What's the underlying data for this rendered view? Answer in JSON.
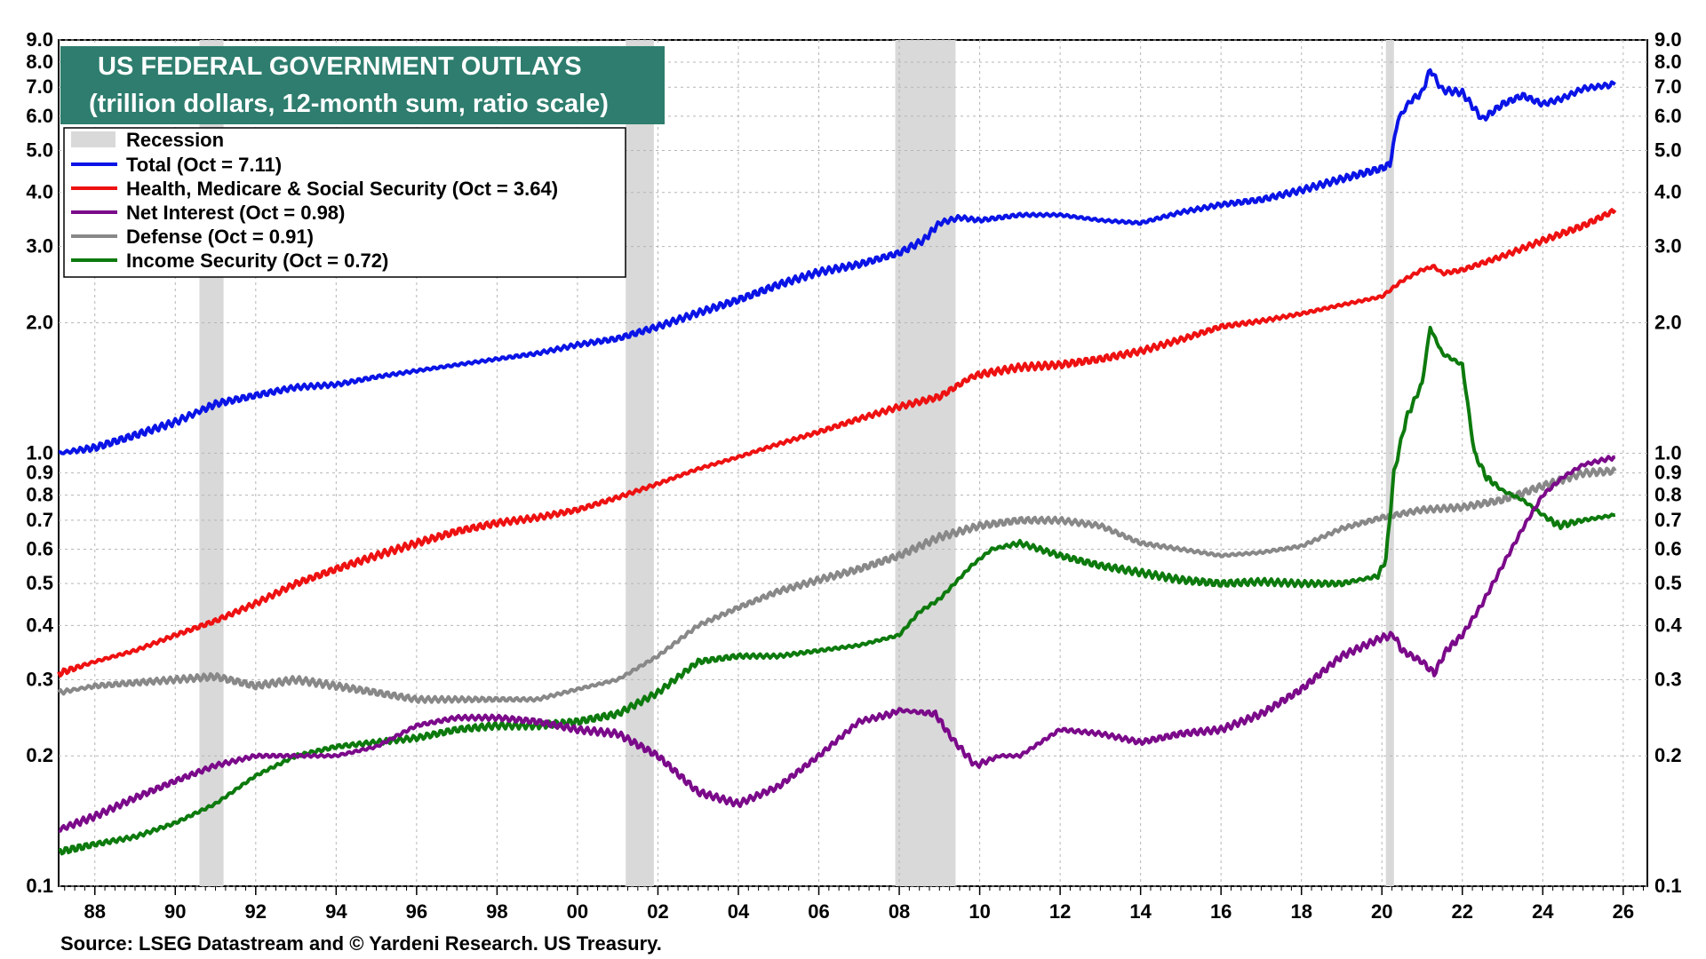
{
  "chart_data": {
    "type": "line",
    "title": "US FEDERAL GOVERNMENT OUTLAYS",
    "subtitle": "(trillion dollars, 12-month sum, ratio scale)",
    "source": "Source: LSEG Datastream and © Yardeni Research. US Treasury.",
    "y_scale": "log",
    "ylim": [
      0.1,
      9.0
    ],
    "xlim": [
      1987.1,
      2026.6
    ],
    "y_ticks": [
      "9.0",
      "8.0",
      "7.0",
      "6.0",
      "5.0",
      "4.0",
      "3.0",
      "2.0",
      "1.0",
      "0.9",
      "0.8",
      "0.7",
      "0.6",
      "0.5",
      "0.4",
      "0.3",
      "0.2",
      "0.1"
    ],
    "x_ticks": [
      "88",
      "90",
      "92",
      "94",
      "96",
      "98",
      "00",
      "02",
      "04",
      "06",
      "08",
      "10",
      "12",
      "14",
      "16",
      "18",
      "20",
      "22",
      "24",
      "26"
    ],
    "grid": true,
    "legend_position": "top-left",
    "recession_label": "Recession",
    "recessions": [
      [
        1990.6,
        1991.2
      ],
      [
        2001.2,
        2001.9
      ],
      [
        2007.9,
        2009.4
      ],
      [
        2020.1,
        2020.3
      ]
    ],
    "series": [
      {
        "name": "Total",
        "legend": "Total  (Oct = 7.11)",
        "color": "#0a14e6",
        "points": [
          [
            1987.1,
            1.0
          ],
          [
            1988,
            1.03
          ],
          [
            1989,
            1.1
          ],
          [
            1990,
            1.18
          ],
          [
            1990.6,
            1.25
          ],
          [
            1991,
            1.3
          ],
          [
            1992,
            1.36
          ],
          [
            1993,
            1.42
          ],
          [
            1994,
            1.44
          ],
          [
            1995,
            1.5
          ],
          [
            1996,
            1.55
          ],
          [
            1997,
            1.6
          ],
          [
            1998,
            1.65
          ],
          [
            1999,
            1.7
          ],
          [
            2000,
            1.78
          ],
          [
            2001,
            1.84
          ],
          [
            2002,
            1.96
          ],
          [
            2003,
            2.11
          ],
          [
            2004,
            2.26
          ],
          [
            2005,
            2.45
          ],
          [
            2006,
            2.62
          ],
          [
            2007,
            2.73
          ],
          [
            2008,
            2.9
          ],
          [
            2008.6,
            3.1
          ],
          [
            2009,
            3.4
          ],
          [
            2009.5,
            3.5
          ],
          [
            2010,
            3.45
          ],
          [
            2011,
            3.55
          ],
          [
            2012,
            3.55
          ],
          [
            2013,
            3.45
          ],
          [
            2014,
            3.4
          ],
          [
            2015,
            3.6
          ],
          [
            2016,
            3.75
          ],
          [
            2017,
            3.85
          ],
          [
            2018,
            4.05
          ],
          [
            2019,
            4.3
          ],
          [
            2020,
            4.55
          ],
          [
            2020.2,
            4.65
          ],
          [
            2020.4,
            5.9
          ],
          [
            2020.7,
            6.5
          ],
          [
            2021,
            6.8
          ],
          [
            2021.2,
            7.7
          ],
          [
            2021.5,
            6.9
          ],
          [
            2022,
            6.8
          ],
          [
            2022.5,
            5.9
          ],
          [
            2023,
            6.4
          ],
          [
            2023.5,
            6.7
          ],
          [
            2024,
            6.4
          ],
          [
            2024.5,
            6.6
          ],
          [
            2025,
            6.95
          ],
          [
            2025.5,
            7.05
          ],
          [
            2025.8,
            7.11
          ]
        ]
      },
      {
        "name": "Health, Medicare & Social Security",
        "legend": "Health, Medicare & Social Security  (Oct = 3.64)",
        "color": "#ee1111",
        "points": [
          [
            1987.1,
            0.31
          ],
          [
            1988,
            0.33
          ],
          [
            1989,
            0.35
          ],
          [
            1990,
            0.38
          ],
          [
            1991,
            0.41
          ],
          [
            1992,
            0.45
          ],
          [
            1993,
            0.5
          ],
          [
            1994,
            0.54
          ],
          [
            1995,
            0.58
          ],
          [
            1996,
            0.62
          ],
          [
            1997,
            0.66
          ],
          [
            1998,
            0.69
          ],
          [
            1999,
            0.71
          ],
          [
            2000,
            0.74
          ],
          [
            2001,
            0.79
          ],
          [
            2002,
            0.85
          ],
          [
            2003,
            0.92
          ],
          [
            2004,
            0.98
          ],
          [
            2005,
            1.05
          ],
          [
            2006,
            1.12
          ],
          [
            2007,
            1.2
          ],
          [
            2008,
            1.28
          ],
          [
            2009,
            1.35
          ],
          [
            2009.8,
            1.5
          ],
          [
            2010,
            1.52
          ],
          [
            2011,
            1.58
          ],
          [
            2012,
            1.6
          ],
          [
            2013,
            1.65
          ],
          [
            2014,
            1.72
          ],
          [
            2015,
            1.83
          ],
          [
            2016,
            1.96
          ],
          [
            2017,
            2.02
          ],
          [
            2018,
            2.1
          ],
          [
            2019,
            2.2
          ],
          [
            2020,
            2.3
          ],
          [
            2020.5,
            2.5
          ],
          [
            2021,
            2.65
          ],
          [
            2021.3,
            2.7
          ],
          [
            2021.5,
            2.6
          ],
          [
            2022,
            2.65
          ],
          [
            2023,
            2.85
          ],
          [
            2024,
            3.1
          ],
          [
            2025,
            3.35
          ],
          [
            2025.8,
            3.64
          ]
        ]
      },
      {
        "name": "Net Interest",
        "legend": "Net Interest (Oct = 0.98)",
        "color": "#7b0a8a",
        "points": [
          [
            1987.1,
            0.135
          ],
          [
            1988,
            0.145
          ],
          [
            1989,
            0.16
          ],
          [
            1990,
            0.175
          ],
          [
            1991,
            0.19
          ],
          [
            1992,
            0.2
          ],
          [
            1993,
            0.2
          ],
          [
            1994,
            0.2
          ],
          [
            1995,
            0.21
          ],
          [
            1996,
            0.235
          ],
          [
            1997,
            0.245
          ],
          [
            1998,
            0.245
          ],
          [
            1999,
            0.24
          ],
          [
            2000,
            0.23
          ],
          [
            2001,
            0.225
          ],
          [
            2002,
            0.2
          ],
          [
            2003,
            0.165
          ],
          [
            2004,
            0.155
          ],
          [
            2005,
            0.17
          ],
          [
            2006,
            0.2
          ],
          [
            2007,
            0.24
          ],
          [
            2007.8,
            0.25
          ],
          [
            2008,
            0.255
          ],
          [
            2008.9,
            0.25
          ],
          [
            2009.3,
            0.22
          ],
          [
            2009.9,
            0.19
          ],
          [
            2010.5,
            0.2
          ],
          [
            2011,
            0.2
          ],
          [
            2012,
            0.23
          ],
          [
            2013,
            0.225
          ],
          [
            2014,
            0.215
          ],
          [
            2015,
            0.225
          ],
          [
            2016,
            0.23
          ],
          [
            2017,
            0.25
          ],
          [
            2018,
            0.285
          ],
          [
            2019,
            0.34
          ],
          [
            2020,
            0.375
          ],
          [
            2020.3,
            0.38
          ],
          [
            2020.5,
            0.35
          ],
          [
            2021,
            0.33
          ],
          [
            2021.3,
            0.31
          ],
          [
            2021.6,
            0.35
          ],
          [
            2022,
            0.38
          ],
          [
            2022.5,
            0.45
          ],
          [
            2023,
            0.55
          ],
          [
            2023.5,
            0.67
          ],
          [
            2024,
            0.8
          ],
          [
            2024.5,
            0.88
          ],
          [
            2025,
            0.94
          ],
          [
            2025.8,
            0.98
          ]
        ]
      },
      {
        "name": "Defense",
        "legend": "Defense (Oct = 0.91)",
        "color": "#888888",
        "points": [
          [
            1987.1,
            0.28
          ],
          [
            1988,
            0.29
          ],
          [
            1989,
            0.295
          ],
          [
            1990,
            0.3
          ],
          [
            1991,
            0.305
          ],
          [
            1992,
            0.29
          ],
          [
            1993,
            0.3
          ],
          [
            1994,
            0.29
          ],
          [
            1995,
            0.28
          ],
          [
            1996,
            0.27
          ],
          [
            1997,
            0.27
          ],
          [
            1998,
            0.27
          ],
          [
            1999,
            0.27
          ],
          [
            2000,
            0.285
          ],
          [
            2001,
            0.3
          ],
          [
            2002,
            0.34
          ],
          [
            2003,
            0.4
          ],
          [
            2004,
            0.44
          ],
          [
            2005,
            0.48
          ],
          [
            2006,
            0.51
          ],
          [
            2007,
            0.54
          ],
          [
            2008,
            0.58
          ],
          [
            2009,
            0.64
          ],
          [
            2010,
            0.68
          ],
          [
            2011,
            0.7
          ],
          [
            2012,
            0.7
          ],
          [
            2013,
            0.68
          ],
          [
            2014,
            0.62
          ],
          [
            2015,
            0.6
          ],
          [
            2016,
            0.58
          ],
          [
            2017,
            0.59
          ],
          [
            2018,
            0.61
          ],
          [
            2019,
            0.67
          ],
          [
            2020,
            0.71
          ],
          [
            2021,
            0.74
          ],
          [
            2022,
            0.75
          ],
          [
            2023,
            0.78
          ],
          [
            2024,
            0.84
          ],
          [
            2025,
            0.9
          ],
          [
            2025.8,
            0.91
          ]
        ]
      },
      {
        "name": "Income Security",
        "legend": "Income Security (Oct = 0.72)",
        "color": "#0d7a0d",
        "points": [
          [
            1987.1,
            0.12
          ],
          [
            1988,
            0.125
          ],
          [
            1989,
            0.13
          ],
          [
            1990,
            0.14
          ],
          [
            1991,
            0.155
          ],
          [
            1992,
            0.18
          ],
          [
            1993,
            0.2
          ],
          [
            1994,
            0.21
          ],
          [
            1995,
            0.215
          ],
          [
            1996,
            0.22
          ],
          [
            1997,
            0.23
          ],
          [
            1998,
            0.235
          ],
          [
            1999,
            0.235
          ],
          [
            2000,
            0.24
          ],
          [
            2001,
            0.25
          ],
          [
            2002,
            0.28
          ],
          [
            2003,
            0.33
          ],
          [
            2004,
            0.34
          ],
          [
            2005,
            0.34
          ],
          [
            2006,
            0.35
          ],
          [
            2007,
            0.36
          ],
          [
            2008,
            0.38
          ],
          [
            2008.5,
            0.43
          ],
          [
            2009,
            0.46
          ],
          [
            2009.8,
            0.55
          ],
          [
            2010.3,
            0.6
          ],
          [
            2011,
            0.62
          ],
          [
            2012,
            0.58
          ],
          [
            2013,
            0.55
          ],
          [
            2014,
            0.53
          ],
          [
            2015,
            0.51
          ],
          [
            2016,
            0.5
          ],
          [
            2017,
            0.505
          ],
          [
            2018,
            0.5
          ],
          [
            2019,
            0.5
          ],
          [
            2019.9,
            0.52
          ],
          [
            2020.1,
            0.57
          ],
          [
            2020.3,
            0.9
          ],
          [
            2020.6,
            1.2
          ],
          [
            2021,
            1.45
          ],
          [
            2021.2,
            1.95
          ],
          [
            2021.5,
            1.7
          ],
          [
            2022,
            1.6
          ],
          [
            2022.3,
            1.0
          ],
          [
            2022.6,
            0.88
          ],
          [
            2023,
            0.82
          ],
          [
            2023.5,
            0.78
          ],
          [
            2024,
            0.72
          ],
          [
            2024.4,
            0.68
          ],
          [
            2025,
            0.7
          ],
          [
            2025.8,
            0.72
          ]
        ]
      }
    ]
  }
}
